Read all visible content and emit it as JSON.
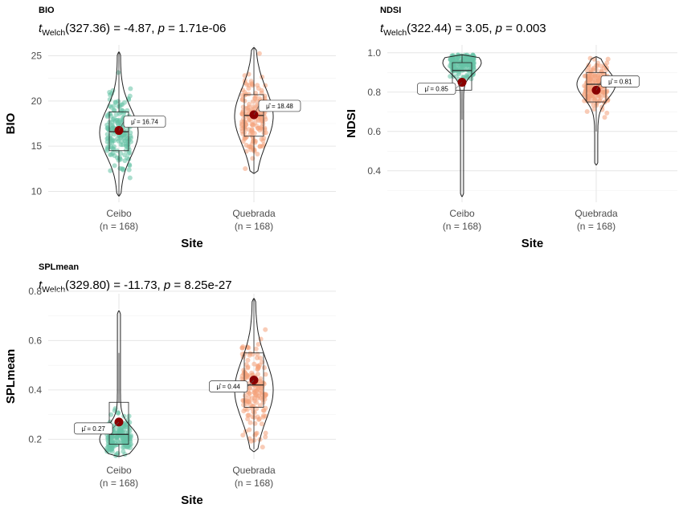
{
  "chart_data": [
    {
      "type": "violin-box",
      "title": "BIO",
      "stat": {
        "t_label": "t",
        "t_sub": "Welch",
        "df": "327.36",
        "t_value": "-4.87",
        "p_label": "p",
        "p_value": "1.71e-06"
      },
      "xlabel": "Site",
      "ylabel": "BIO",
      "ylim": [
        8.8,
        26.2
      ],
      "yticks": [
        10,
        15,
        20,
        25
      ],
      "categories": [
        "Ceibo",
        "Quebrada"
      ],
      "n_labels": [
        "(n = 168)",
        "(n = 168)"
      ],
      "groups": [
        {
          "name": "Ceibo",
          "color": "#66c2a5",
          "mean": 16.74,
          "mean_label": "μ̂ = 16.74",
          "q1": 14.5,
          "median": 16.6,
          "q3": 18.8,
          "wlo": 9.5,
          "whi": 25.4,
          "vmin": 9.5,
          "vmax": 25.4,
          "peak": 16.5,
          "spread": 2.6
        },
        {
          "name": "Quebrada",
          "color": "#f4a27c",
          "mean": 18.48,
          "mean_label": "μ̂ = 18.48",
          "q1": 16.1,
          "median": 18.4,
          "q3": 20.7,
          "wlo": 12.0,
          "whi": 25.9,
          "vmin": 12.0,
          "vmax": 25.9,
          "peak": 18.3,
          "spread": 3.0
        }
      ]
    },
    {
      "type": "violin-box",
      "title": "NDSI",
      "stat": {
        "t_label": "t",
        "t_sub": "Welch",
        "df": "322.44",
        "t_value": "3.05",
        "p_label": "p",
        "p_value": "0.003"
      },
      "xlabel": "Site",
      "ylabel": "NDSI",
      "ylim": [
        0.24,
        1.04
      ],
      "yticks": [
        0.4,
        0.6,
        0.8,
        1.0
      ],
      "ytick_labels": [
        "0.4",
        "0.6",
        "0.8",
        "1.0"
      ],
      "categories": [
        "Ceibo",
        "Quebrada"
      ],
      "n_labels": [
        "(n = 168)",
        "(n = 168)"
      ],
      "groups": [
        {
          "name": "Ceibo",
          "color": "#66c2a5",
          "mean": 0.85,
          "mean_label": "μ̂ = 0.85",
          "q1": 0.81,
          "median": 0.91,
          "q3": 0.95,
          "wlo": 0.66,
          "whi": 0.99,
          "vmin": 0.27,
          "vmax": 0.99,
          "peak": 0.95,
          "spread": 0.05
        },
        {
          "name": "Quebrada",
          "color": "#f4a27c",
          "mean": 0.81,
          "mean_label": "μ̂ = 0.81",
          "q1": 0.75,
          "median": 0.84,
          "q3": 0.9,
          "wlo": 0.6,
          "whi": 0.98,
          "vmin": 0.43,
          "vmax": 0.98,
          "peak": 0.84,
          "spread": 0.07
        }
      ]
    },
    {
      "type": "violin-box",
      "title": "SPLmean",
      "stat": {
        "t_label": "t",
        "t_sub": "Welch",
        "df": "329.80",
        "t_value": "-11.73",
        "p_label": "p",
        "p_value": "8.25e-27"
      },
      "xlabel": "Site",
      "ylabel": "SPLmean",
      "ylim": [
        0.12,
        0.79
      ],
      "yticks": [
        0.2,
        0.4,
        0.6,
        0.8
      ],
      "categories": [
        "Ceibo",
        "Quebrada"
      ],
      "n_labels": [
        "(n = 168)",
        "(n = 168)"
      ],
      "groups": [
        {
          "name": "Ceibo",
          "color": "#66c2a5",
          "mean": 0.27,
          "mean_label": "μ̂ = 0.27",
          "q1": 0.18,
          "median": 0.22,
          "q3": 0.35,
          "wlo": 0.13,
          "whi": 0.55,
          "vmin": 0.13,
          "vmax": 0.72,
          "peak": 0.2,
          "spread": 0.05
        },
        {
          "name": "Quebrada",
          "color": "#f4a27c",
          "mean": 0.44,
          "mean_label": "μ̂ = 0.44",
          "q1": 0.33,
          "median": 0.42,
          "q3": 0.55,
          "wlo": 0.16,
          "whi": 0.77,
          "vmin": 0.15,
          "vmax": 0.77,
          "peak": 0.4,
          "spread": 0.12
        }
      ]
    }
  ],
  "colors": {
    "mean_point": "#8b0000",
    "grid": "#e6e6e6",
    "outline": "#222222"
  }
}
